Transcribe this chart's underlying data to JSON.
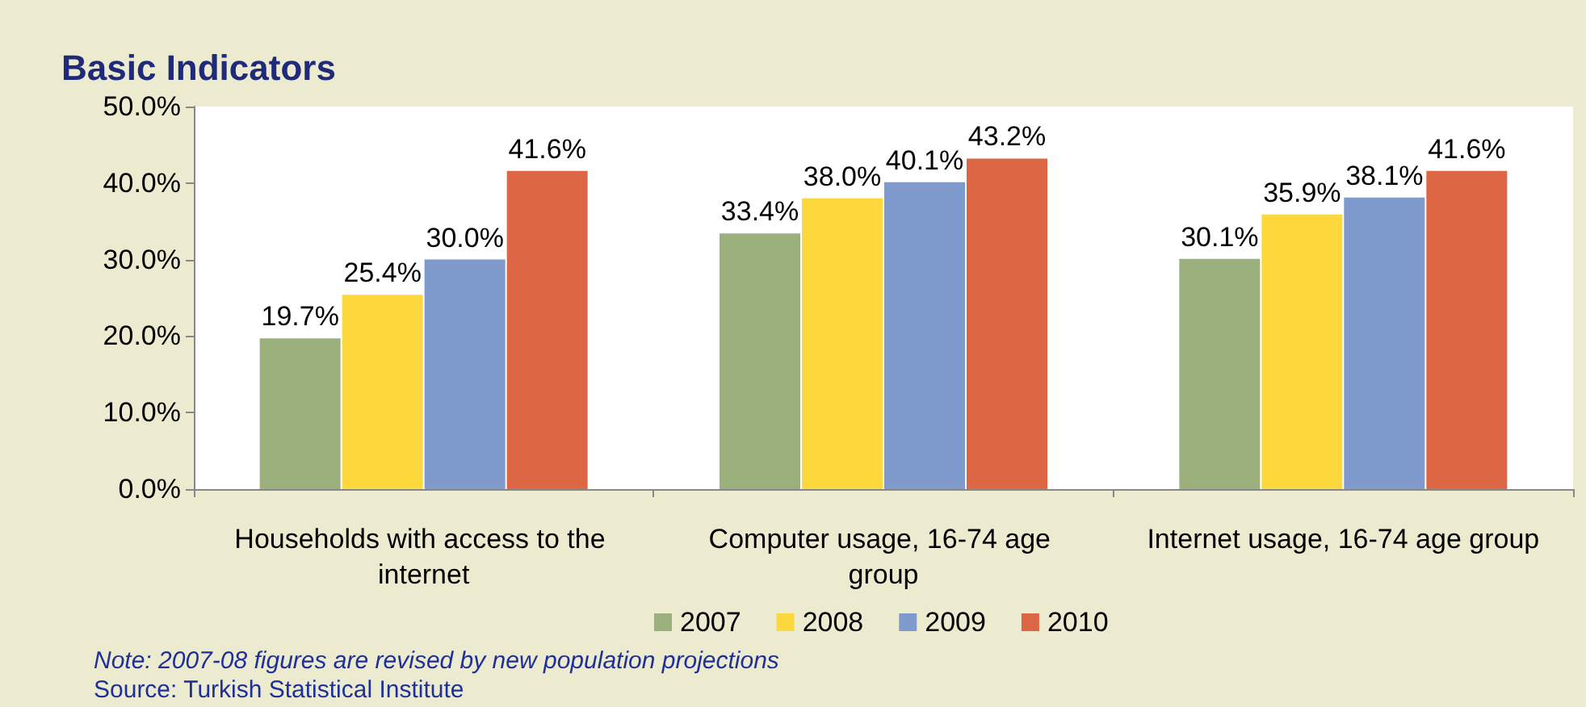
{
  "chart_data": {
    "type": "bar",
    "title": "Basic Indicators",
    "categories": [
      "Households with access to the internet",
      "Computer usage, 16-74 age group",
      "Internet usage, 16-74 age group"
    ],
    "series": [
      {
        "name": "2007",
        "color": "#9bb07c",
        "values": [
          19.7,
          33.4,
          30.1
        ],
        "value_labels": [
          "19.7%",
          "33.4%",
          "30.1%"
        ]
      },
      {
        "name": "2008",
        "color": "#fdd83c",
        "values": [
          25.4,
          38.0,
          35.9
        ],
        "value_labels": [
          "25.4%",
          "38.0%",
          "35.9%"
        ]
      },
      {
        "name": "2009",
        "color": "#7f9acd",
        "values": [
          30.0,
          40.1,
          38.1
        ],
        "value_labels": [
          "30.0%",
          "40.1%",
          "38.1%"
        ]
      },
      {
        "name": "2010",
        "color": "#dd6744",
        "values": [
          41.6,
          43.2,
          41.6
        ],
        "value_labels": [
          "41.6%",
          "43.2%",
          "41.6%"
        ]
      }
    ],
    "ylim": [
      0,
      50
    ],
    "yticks": [
      {
        "value": 0,
        "label": "0.0%"
      },
      {
        "value": 10,
        "label": "10.0%"
      },
      {
        "value": 20,
        "label": "20.0%"
      },
      {
        "value": 30,
        "label": "30.0%"
      },
      {
        "value": 40,
        "label": "40.0%"
      },
      {
        "value": 50,
        "label": "50.0%"
      }
    ],
    "grid": false,
    "legend": "bottom",
    "annotations": [
      "Note: 2007-08 figures are revised by new population projections",
      "Source: Turkish Statistical Institute"
    ]
  }
}
